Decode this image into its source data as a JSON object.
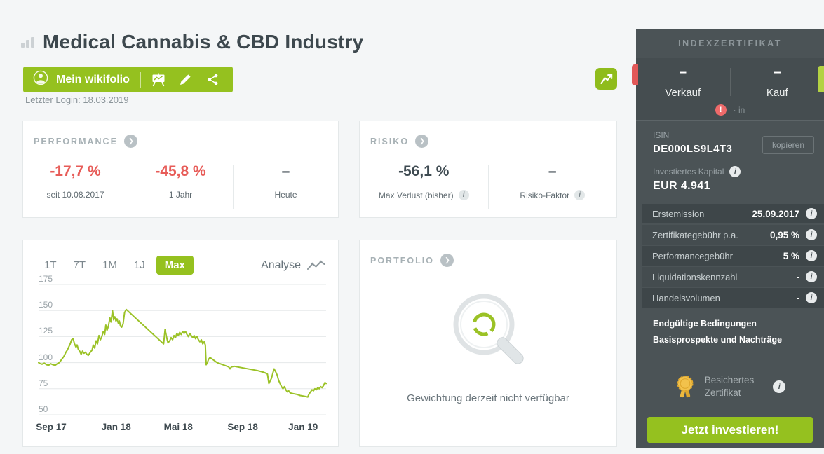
{
  "header": {
    "title": "Medical Cannabis & CBD Industry",
    "my_wikifolio_label": "Mein wikifolio",
    "last_login": "Letzter Login: 18.03.2019"
  },
  "performance": {
    "title": "PERFORMANCE",
    "items": [
      {
        "value": "-17,7 %",
        "label": "seit 10.08.2017"
      },
      {
        "value": "-45,8 %",
        "label": "1 Jahr"
      },
      {
        "value": "–",
        "label": "Heute"
      }
    ]
  },
  "risk": {
    "title": "RISIKO",
    "items": [
      {
        "value": "-56,1 %",
        "label": "Max Verlust (bisher)"
      },
      {
        "value": "–",
        "label": "Risiko-Faktor"
      }
    ]
  },
  "chart_panel": {
    "ranges": [
      "1T",
      "7T",
      "1M",
      "1J",
      "Max"
    ],
    "active_range": "Max",
    "analyse_label": "Analyse"
  },
  "chart_data": {
    "type": "line",
    "title": "Wertentwicklung (Max)",
    "ylim": [
      50,
      175
    ],
    "y_gridlines": [
      175,
      150,
      125,
      100,
      75,
      50
    ],
    "x_unit": "fraction-of-axis",
    "x_ticks": [
      {
        "label": "Sep 17",
        "pos": 0.044
      },
      {
        "label": "Jan 18",
        "pos": 0.27
      },
      {
        "label": "Mai 18",
        "pos": 0.486
      },
      {
        "label": "Sep 18",
        "pos": 0.71
      },
      {
        "label": "Jan 19",
        "pos": 0.92
      }
    ],
    "line_color": "#9bc226",
    "grid": true,
    "points": [
      [
        0.0,
        100
      ],
      [
        0.006,
        99
      ],
      [
        0.012,
        98.5
      ],
      [
        0.02,
        99.5
      ],
      [
        0.028,
        98
      ],
      [
        0.035,
        97.5
      ],
      [
        0.042,
        99
      ],
      [
        0.05,
        98
      ],
      [
        0.058,
        97.5
      ],
      [
        0.065,
        99
      ],
      [
        0.072,
        100
      ],
      [
        0.08,
        103
      ],
      [
        0.088,
        106
      ],
      [
        0.095,
        110
      ],
      [
        0.1,
        112
      ],
      [
        0.105,
        115
      ],
      [
        0.11,
        118
      ],
      [
        0.115,
        122
      ],
      [
        0.12,
        123
      ],
      [
        0.125,
        118
      ],
      [
        0.13,
        115
      ],
      [
        0.134,
        117
      ],
      [
        0.138,
        113
      ],
      [
        0.143,
        111
      ],
      [
        0.148,
        108
      ],
      [
        0.153,
        111
      ],
      [
        0.158,
        109
      ],
      [
        0.163,
        110
      ],
      [
        0.168,
        108
      ],
      [
        0.173,
        107
      ],
      [
        0.18,
        110
      ],
      [
        0.186,
        112
      ],
      [
        0.19,
        117
      ],
      [
        0.195,
        114
      ],
      [
        0.2,
        121
      ],
      [
        0.205,
        118
      ],
      [
        0.21,
        126
      ],
      [
        0.215,
        122
      ],
      [
        0.22,
        125
      ],
      [
        0.225,
        130
      ],
      [
        0.23,
        127
      ],
      [
        0.234,
        136
      ],
      [
        0.238,
        131
      ],
      [
        0.243,
        135
      ],
      [
        0.248,
        143
      ],
      [
        0.252,
        139
      ],
      [
        0.257,
        150
      ],
      [
        0.261,
        141
      ],
      [
        0.265,
        144
      ],
      [
        0.269,
        140
      ],
      [
        0.273,
        142
      ],
      [
        0.277,
        138
      ],
      [
        0.281,
        140
      ],
      [
        0.285,
        135
      ],
      [
        0.289,
        134
      ],
      [
        0.294,
        137
      ],
      [
        0.299,
        148
      ],
      [
        0.305,
        151
      ],
      [
        0.435,
        118
      ],
      [
        0.44,
        132
      ],
      [
        0.445,
        125
      ],
      [
        0.45,
        119
      ],
      [
        0.456,
        121
      ],
      [
        0.461,
        124
      ],
      [
        0.466,
        122
      ],
      [
        0.471,
        126
      ],
      [
        0.476,
        124
      ],
      [
        0.481,
        128
      ],
      [
        0.486,
        126
      ],
      [
        0.491,
        129
      ],
      [
        0.496,
        127
      ],
      [
        0.501,
        130
      ],
      [
        0.506,
        128
      ],
      [
        0.511,
        130
      ],
      [
        0.516,
        127
      ],
      [
        0.521,
        125
      ],
      [
        0.526,
        128
      ],
      [
        0.531,
        126
      ],
      [
        0.536,
        124
      ],
      [
        0.541,
        126
      ],
      [
        0.546,
        123
      ],
      [
        0.551,
        125
      ],
      [
        0.556,
        122
      ],
      [
        0.561,
        120
      ],
      [
        0.566,
        122
      ],
      [
        0.571,
        118
      ],
      [
        0.576,
        120
      ],
      [
        0.58,
        117
      ],
      [
        0.583,
        98
      ],
      [
        0.587,
        100
      ],
      [
        0.591,
        103
      ],
      [
        0.596,
        105
      ],
      [
        0.601,
        104
      ],
      [
        0.611,
        102
      ],
      [
        0.621,
        100
      ],
      [
        0.631,
        99
      ],
      [
        0.641,
        98
      ],
      [
        0.651,
        97
      ],
      [
        0.661,
        96
      ],
      [
        0.666,
        94
      ],
      [
        0.671,
        96
      ],
      [
        0.681,
        96.5
      ],
      [
        0.7,
        95.5
      ],
      [
        0.72,
        94.5
      ],
      [
        0.74,
        93.5
      ],
      [
        0.76,
        92.5
      ],
      [
        0.78,
        91
      ],
      [
        0.79,
        90
      ],
      [
        0.796,
        89
      ],
      [
        0.801,
        80
      ],
      [
        0.81,
        85
      ],
      [
        0.819,
        94
      ],
      [
        0.825,
        91
      ],
      [
        0.83,
        88
      ],
      [
        0.835,
        83
      ],
      [
        0.84,
        80
      ],
      [
        0.845,
        77
      ],
      [
        0.85,
        75
      ],
      [
        0.855,
        77
      ],
      [
        0.86,
        74
      ],
      [
        0.865,
        72
      ],
      [
        0.87,
        73
      ],
      [
        0.875,
        71
      ],
      [
        0.881,
        70.5
      ],
      [
        0.89,
        70
      ],
      [
        0.9,
        69.5
      ],
      [
        0.91,
        68.5
      ],
      [
        0.92,
        68
      ],
      [
        0.93,
        67.5
      ],
      [
        0.936,
        67
      ],
      [
        0.941,
        70
      ],
      [
        0.946,
        72
      ],
      [
        0.951,
        74
      ],
      [
        0.956,
        73
      ],
      [
        0.961,
        75
      ],
      [
        0.966,
        74
      ],
      [
        0.971,
        76
      ],
      [
        0.976,
        75
      ],
      [
        0.981,
        77
      ],
      [
        0.986,
        76
      ],
      [
        0.991,
        78
      ],
      [
        0.996,
        81
      ],
      [
        1.0,
        80
      ]
    ]
  },
  "portfolio": {
    "title": "PORTFOLIO",
    "empty_message": "Gewichtung derzeit nicht verfügbar"
  },
  "sidebar": {
    "title": "INDEXZERTIFIKAT",
    "sell": {
      "value": "–",
      "label": "Verkauf"
    },
    "buy": {
      "value": "–",
      "label": "Kauf"
    },
    "alert_symbol": "!",
    "alert_note": "· in",
    "isin_label": "ISIN",
    "isin_value": "DE000LS9L4T3",
    "copy_button": "kopieren",
    "invested_label": "Investiertes Kapital",
    "invested_value": "EUR 4.941",
    "facts": [
      {
        "label": "Erstemission",
        "value": "25.09.2017"
      },
      {
        "label": "Zertifikategebühr p.a.",
        "value": "0,95 %"
      },
      {
        "label": "Performancegebühr",
        "value": "5 %"
      },
      {
        "label": "Liquidationskennzahl",
        "value": "-"
      },
      {
        "label": "Handelsvolumen",
        "value": "-"
      }
    ],
    "links": [
      "Endgültige Bedingungen",
      "Basisprospekte und Nachträge"
    ],
    "secured_badge": {
      "line1": "Besichertes",
      "line2": "Zertifikat"
    },
    "invest_button": "Jetzt investieren!"
  },
  "colors": {
    "accent_green": "#95c11f",
    "negative_red": "#e75c58",
    "sidebar_bg": "#4b5356",
    "page_bg": "#f4f6f7",
    "chart_line": "#9bc226"
  }
}
